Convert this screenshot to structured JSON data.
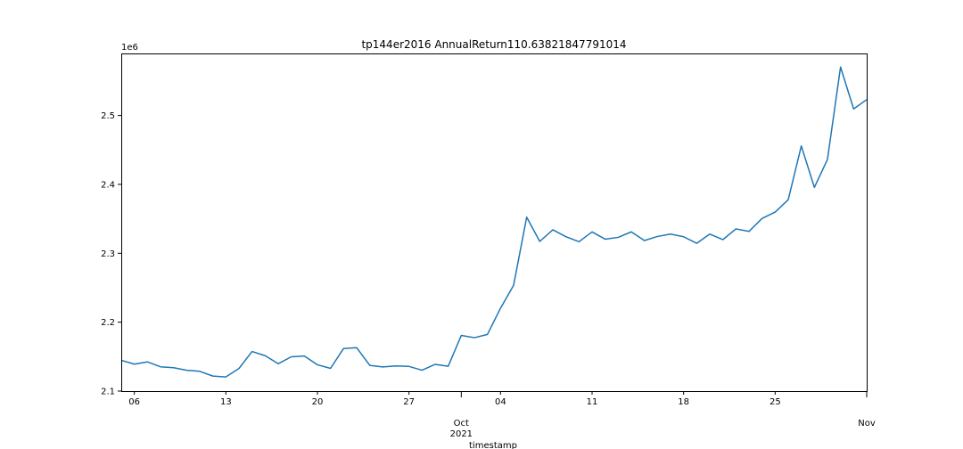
{
  "chart_data": {
    "type": "line",
    "title": "tp144er2016 AnnualReturn110.63821847791014",
    "xlabel": "timestamp",
    "ylabel": "",
    "y_offset_text": "1e6",
    "ylim": [
      2.1,
      2.59
    ],
    "y_ticks": [
      2.1,
      2.2,
      2.3,
      2.4,
      2.5
    ],
    "y_tick_labels": [
      "2.1",
      "2.2",
      "2.3",
      "2.4",
      "2.5"
    ],
    "xlim": [
      "2021-09-05",
      "2021-11-01"
    ],
    "x_ticks": [
      {
        "date": "2021-09-06",
        "label": "06"
      },
      {
        "date": "2021-09-13",
        "label": "13"
      },
      {
        "date": "2021-09-20",
        "label": "20"
      },
      {
        "date": "2021-09-27",
        "label": "27"
      },
      {
        "date": "2021-10-01",
        "label": "Oct\n2021"
      },
      {
        "date": "2021-10-04",
        "label": "04"
      },
      {
        "date": "2021-10-11",
        "label": "11"
      },
      {
        "date": "2021-10-18",
        "label": "18"
      },
      {
        "date": "2021-10-25",
        "label": "25"
      },
      {
        "date": "2021-11-01",
        "label": "Nov"
      }
    ],
    "grid": false,
    "colors": {
      "line": "#1f77b4",
      "axis": "#000000"
    },
    "series": [
      {
        "x": [
          "2021-09-05",
          "2021-09-06",
          "2021-09-07",
          "2021-09-08",
          "2021-09-09",
          "2021-09-10",
          "2021-09-11",
          "2021-09-12",
          "2021-09-13",
          "2021-09-14",
          "2021-09-15",
          "2021-09-16",
          "2021-09-17",
          "2021-09-18",
          "2021-09-19",
          "2021-09-20",
          "2021-09-21",
          "2021-09-22",
          "2021-09-23",
          "2021-09-24",
          "2021-09-25",
          "2021-09-26",
          "2021-09-27",
          "2021-09-28",
          "2021-09-29",
          "2021-09-30",
          "2021-10-01",
          "2021-10-02",
          "2021-10-03",
          "2021-10-04",
          "2021-10-05",
          "2021-10-06",
          "2021-10-07",
          "2021-10-08",
          "2021-10-09",
          "2021-10-10",
          "2021-10-11",
          "2021-10-12",
          "2021-10-13",
          "2021-10-14",
          "2021-10-15",
          "2021-10-16",
          "2021-10-17",
          "2021-10-18",
          "2021-10-19",
          "2021-10-20",
          "2021-10-21",
          "2021-10-22",
          "2021-10-23",
          "2021-10-24",
          "2021-10-25",
          "2021-10-26",
          "2021-10-27",
          "2021-10-28",
          "2021-10-29",
          "2021-10-30",
          "2021-10-31",
          "2021-11-01"
        ],
        "values": [
          2.1447,
          2.1391,
          2.1424,
          2.1353,
          2.1339,
          2.1302,
          2.1287,
          2.1218,
          2.1206,
          2.1328,
          2.1575,
          2.1514,
          2.1397,
          2.1498,
          2.1509,
          2.1382,
          2.133,
          2.1618,
          2.163,
          2.1374,
          2.1351,
          2.1366,
          2.1358,
          2.1303,
          2.1388,
          2.1361,
          2.1808,
          2.1775,
          2.1823,
          2.2203,
          2.2535,
          2.3524,
          2.3172,
          2.3341,
          2.3241,
          2.3168,
          2.331,
          2.3205,
          2.3231,
          2.3311,
          2.3185,
          2.3244,
          2.3279,
          2.324,
          2.3145,
          2.3278,
          2.3198,
          2.3354,
          2.3317,
          2.3506,
          2.3598,
          2.3777,
          2.4558,
          2.3956,
          2.4363,
          2.5703,
          2.5095,
          2.523
        ]
      }
    ]
  }
}
